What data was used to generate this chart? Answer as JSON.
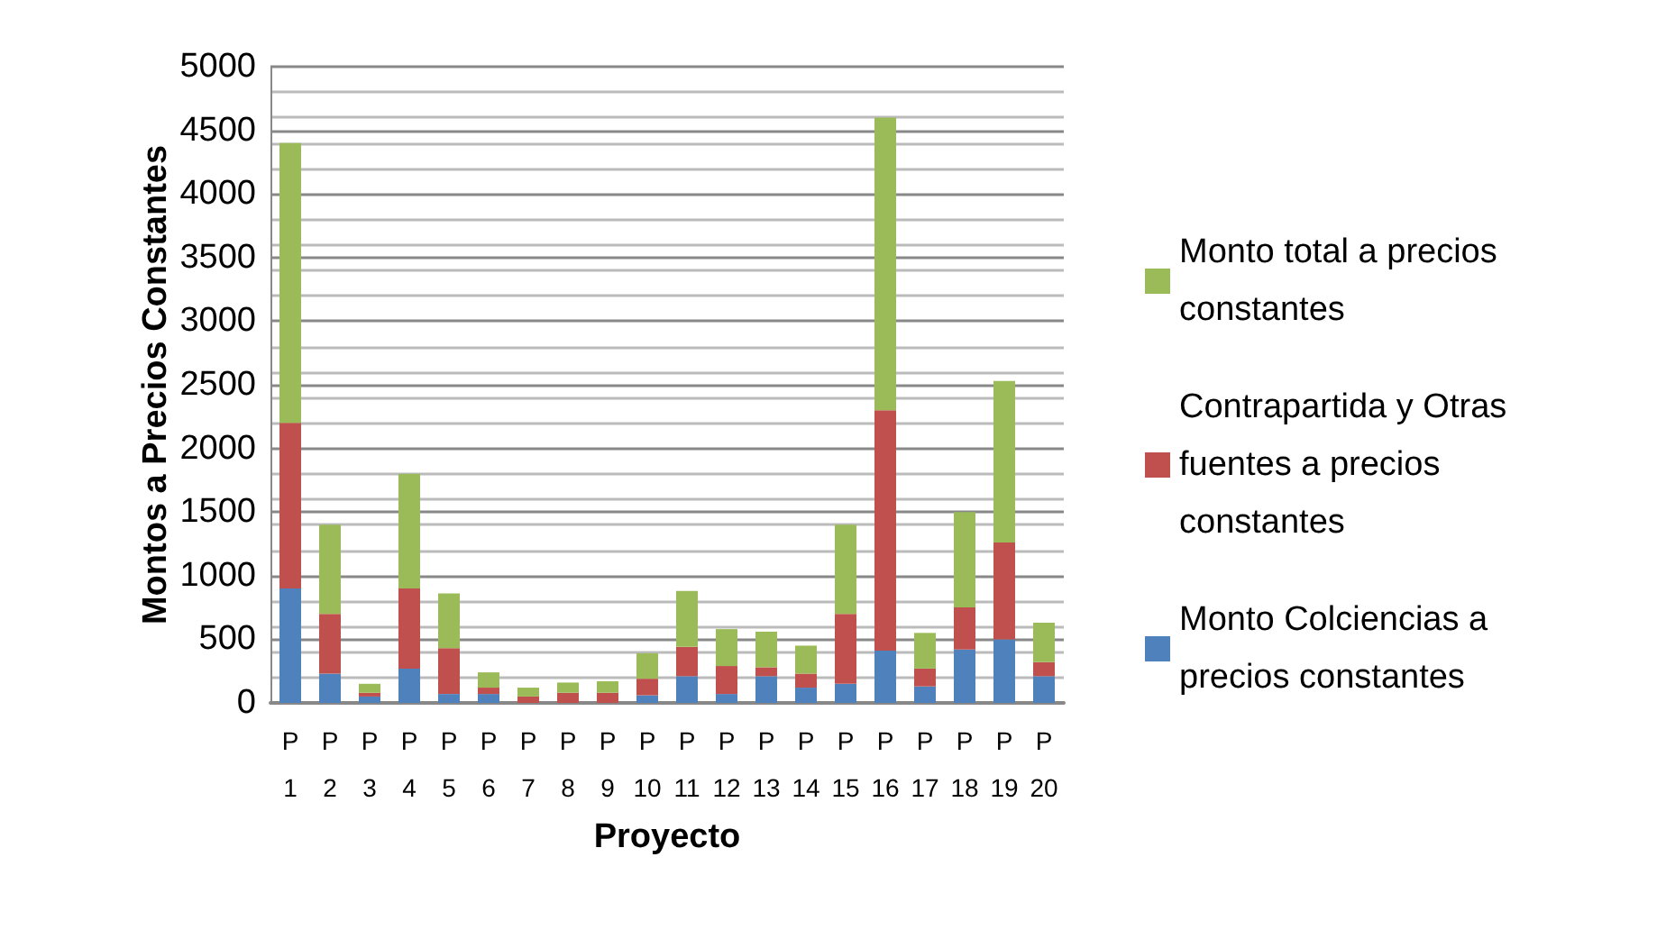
{
  "chart_data": {
    "type": "bar",
    "stacked": true,
    "xlabel": "Proyecto",
    "ylabel": "Montos a Precios Constantes",
    "categories": [
      "P 1",
      "P 2",
      "P 3",
      "P 4",
      "P 5",
      "P 6",
      "P 7",
      "P 8",
      "P 9",
      "P 10",
      "P 11",
      "P 12",
      "P 13",
      "P 14",
      "P 15",
      "P 16",
      "P 17",
      "P 18",
      "P 19",
      "P 20"
    ],
    "series": [
      {
        "name": "Monto Colciencias a precios constantes",
        "color": "#4f81bd",
        "values": [
          900,
          230,
          50,
          270,
          70,
          70,
          null,
          null,
          null,
          60,
          210,
          70,
          210,
          120,
          150,
          410,
          130,
          420,
          500,
          210
        ]
      },
      {
        "name": "Contrapartida y Otras fuentes a precios constantes",
        "color": "#c0504d",
        "values": [
          1300,
          470,
          30,
          630,
          360,
          50,
          50,
          80,
          80,
          130,
          230,
          220,
          70,
          110,
          550,
          1890,
          140,
          330,
          760,
          110
        ]
      },
      {
        "name": "Monto total a precios constantes",
        "color": "#9bbb59",
        "values": [
          2200,
          700,
          70,
          900,
          430,
          120,
          70,
          80,
          90,
          200,
          440,
          290,
          280,
          220,
          700,
          2300,
          280,
          750,
          1270,
          310
        ]
      }
    ],
    "ylim": [
      0,
      5000
    ],
    "yticks": [
      0,
      500,
      1000,
      1500,
      2000,
      2500,
      3000,
      3500,
      4000,
      4500,
      5000
    ],
    "grid": "y",
    "legend": "right"
  }
}
